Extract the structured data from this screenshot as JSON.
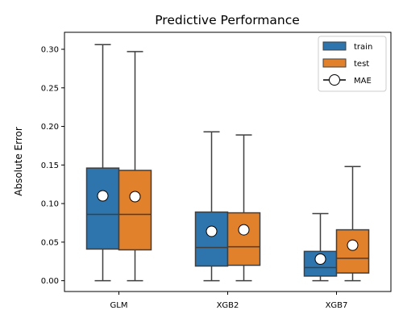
{
  "chart_data": {
    "type": "box",
    "title": "Predictive Performance",
    "xlabel": "",
    "ylabel": "Absolute Error",
    "ylim": [
      -0.014,
      0.322
    ],
    "yticks": [
      0.0,
      0.05,
      0.1,
      0.15,
      0.2,
      0.25,
      0.3
    ],
    "ytick_labels": [
      "0.00",
      "0.05",
      "0.10",
      "0.15",
      "0.20",
      "0.25",
      "0.30"
    ],
    "categories": [
      "GLM",
      "XGB2",
      "XGB7"
    ],
    "grid": false,
    "legend_position": "top-right",
    "legend": [
      "train",
      "test",
      "MAE"
    ],
    "series": [
      {
        "name": "train",
        "color": "#2e75ad",
        "boxes": [
          {
            "whisker_low": 0.0,
            "q1": 0.041,
            "median": 0.086,
            "q3": 0.146,
            "whisker_high": 0.306,
            "mae": 0.11
          },
          {
            "whisker_low": 0.0,
            "q1": 0.019,
            "median": 0.043,
            "q3": 0.089,
            "whisker_high": 0.193,
            "mae": 0.064
          },
          {
            "whisker_low": 0.0,
            "q1": 0.006,
            "median": 0.017,
            "q3": 0.038,
            "whisker_high": 0.087,
            "mae": 0.028
          }
        ]
      },
      {
        "name": "test",
        "color": "#e1812c",
        "boxes": [
          {
            "whisker_low": 0.0,
            "q1": 0.04,
            "median": 0.086,
            "q3": 0.143,
            "whisker_high": 0.297,
            "mae": 0.109
          },
          {
            "whisker_low": 0.0,
            "q1": 0.02,
            "median": 0.044,
            "q3": 0.088,
            "whisker_high": 0.189,
            "mae": 0.066
          },
          {
            "whisker_low": 0.0,
            "q1": 0.01,
            "median": 0.029,
            "q3": 0.066,
            "whisker_high": 0.148,
            "mae": 0.046
          }
        ]
      }
    ]
  }
}
